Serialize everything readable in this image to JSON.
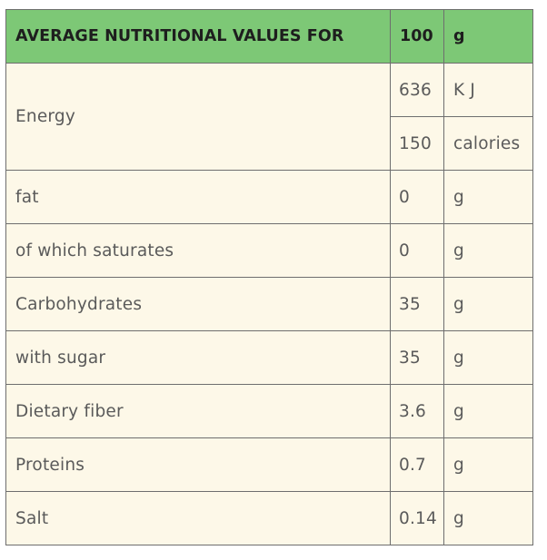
{
  "header": {
    "label": "AVERAGE NUTRITIONAL VALUES FOR",
    "amount": "100",
    "unit": "g"
  },
  "energy": {
    "label": "Energy",
    "kj_value": "636",
    "kj_unit": "K J",
    "cal_value": "150",
    "cal_unit": "calories"
  },
  "rows": [
    {
      "label": "fat",
      "value": "0",
      "unit": "g"
    },
    {
      "label": "of which saturates",
      "value": "0",
      "unit": "g"
    },
    {
      "label": "Carbohydrates",
      "value": "35",
      "unit": "g"
    },
    {
      "label": "with sugar",
      "value": "35",
      "unit": "g"
    },
    {
      "label": "Dietary fiber",
      "value": "3.6",
      "unit": "g"
    },
    {
      "label": "Proteins",
      "value": "0.7",
      "unit": "g"
    },
    {
      "label": "Salt",
      "value": "0.14",
      "unit": "g"
    }
  ],
  "colors": {
    "header_background": "#7dc876",
    "table_background": "#fdf8e8",
    "grid_lines": "#6e6e6e"
  }
}
